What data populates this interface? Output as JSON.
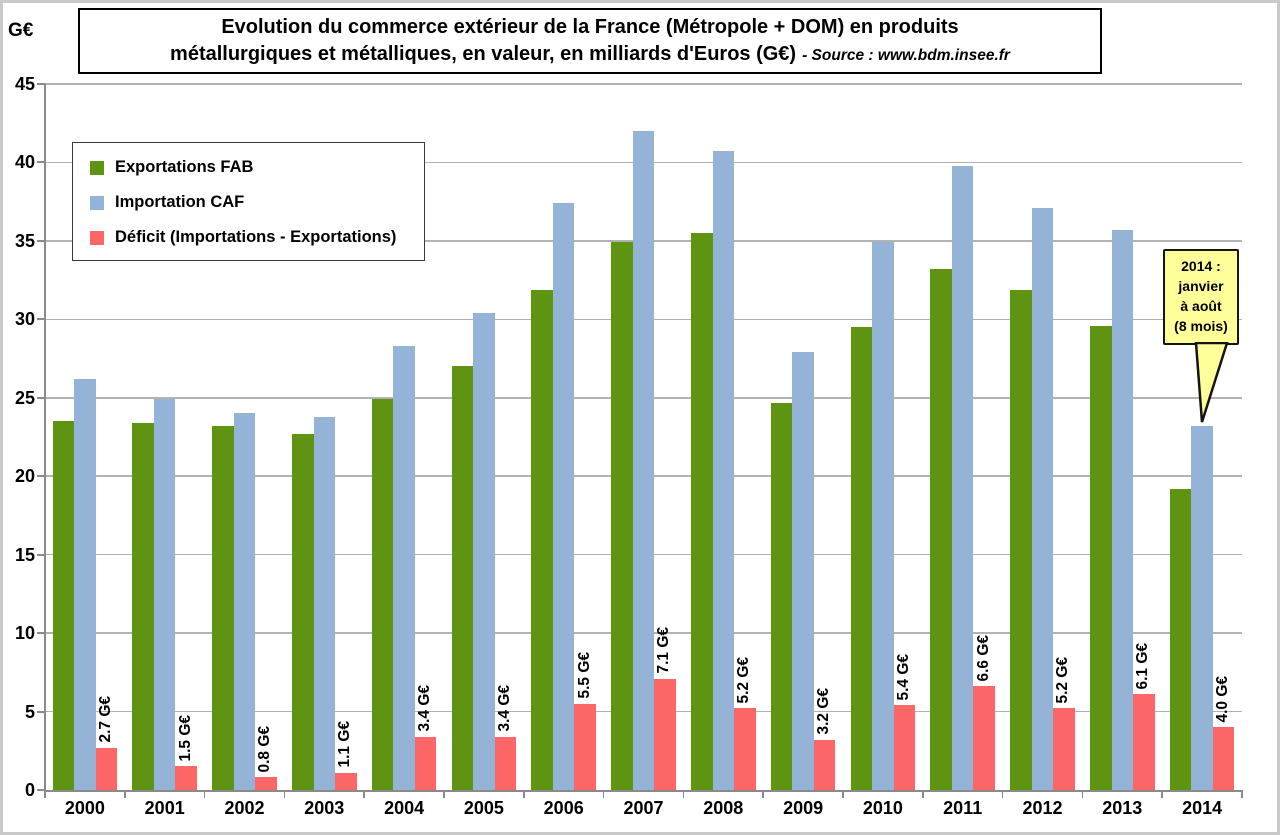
{
  "title": {
    "line1": "Evolution du commerce extérieur de la France (Métropole + DOM) en produits",
    "line2": "métallurgiques et métalliques, en valeur, en milliards d'Euros (G€)",
    "source": "- Source : www.bdm.insee.fr"
  },
  "y_axis": {
    "unit_label": "G€"
  },
  "chart_data": {
    "type": "bar",
    "title": "Evolution du commerce extérieur de la France (Métropole + DOM) en produits métallurgiques et métalliques, en valeur, en milliards d'Euros (G€)",
    "source": "- Source : www.bdm.insee.fr",
    "xlabel": "",
    "ylabel": "G€",
    "ylim": [
      0,
      45
    ],
    "ytick_step": 5,
    "grid": true,
    "legend_position": "top-left",
    "categories": [
      "2000",
      "2001",
      "2002",
      "2003",
      "2004",
      "2005",
      "2006",
      "2007",
      "2008",
      "2009",
      "2010",
      "2011",
      "2012",
      "2013",
      "2014"
    ],
    "series": [
      {
        "name": "Exportations FAB",
        "color": "#5E9412",
        "values": [
          23.5,
          23.4,
          23.2,
          22.7,
          24.9,
          27.0,
          31.9,
          34.9,
          35.5,
          24.7,
          29.5,
          33.2,
          31.9,
          29.6,
          19.2
        ]
      },
      {
        "name": "Importation CAF",
        "color": "#95B3D7",
        "values": [
          26.2,
          24.9,
          24.0,
          23.8,
          28.3,
          30.4,
          37.4,
          42.0,
          40.7,
          27.9,
          34.9,
          39.8,
          37.1,
          35.7,
          23.2
        ]
      },
      {
        "name": "Déficit (Importations - Exportations)",
        "color": "#FC6666",
        "values": [
          2.7,
          1.5,
          0.8,
          1.1,
          3.4,
          3.4,
          5.5,
          7.1,
          5.2,
          3.2,
          5.4,
          6.6,
          5.2,
          6.1,
          4.0
        ],
        "value_labels": [
          "2.7 G€",
          "1.5 G€",
          "0.8 G€",
          "1.1 G€",
          "3.4 G€",
          "3.4 G€",
          "5.5 G€",
          "7.1 G€",
          "5.2 G€",
          "3.2 G€",
          "5.4 G€",
          "6.6 G€",
          "5.2 G€",
          "6.1 G€",
          "4.0 G€"
        ]
      }
    ],
    "annotation": {
      "target_year": "2014",
      "lines": [
        "2014 :",
        "janvier",
        "à août",
        "(8 mois)"
      ],
      "bg_color": "#FFFF99"
    }
  }
}
